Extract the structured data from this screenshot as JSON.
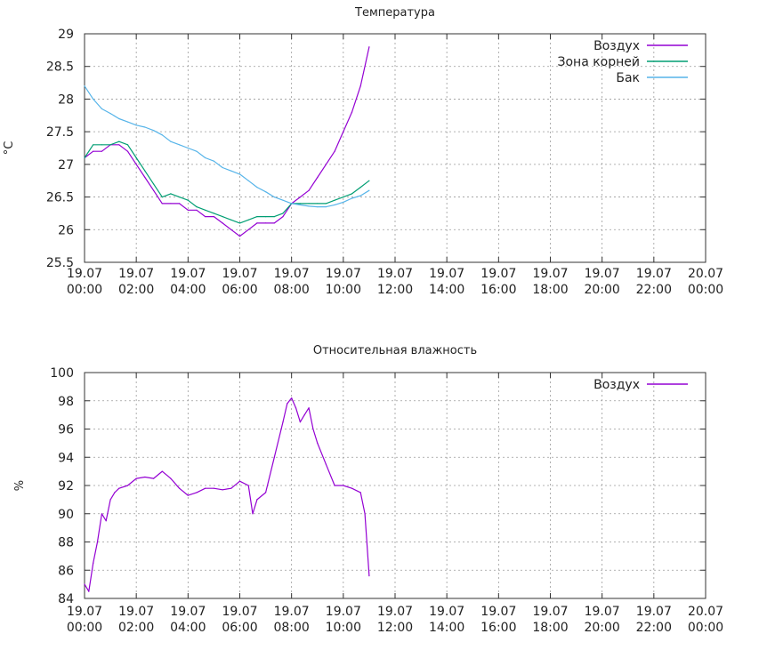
{
  "chart_data": [
    {
      "type": "line",
      "title": "Температура",
      "ylabel": "°C",
      "xlabel": "",
      "ylim": [
        25.5,
        29
      ],
      "xlim": [
        "19.07 00:00",
        "20.07 00:00"
      ],
      "yticks": [
        "25.5",
        "26",
        "26.5",
        "27",
        "27.5",
        "28",
        "28.5",
        "29"
      ],
      "xticks": [
        [
          "19.07",
          "00:00"
        ],
        [
          "19.07",
          "02:00"
        ],
        [
          "19.07",
          "04:00"
        ],
        [
          "19.07",
          "06:00"
        ],
        [
          "19.07",
          "08:00"
        ],
        [
          "19.07",
          "10:00"
        ],
        [
          "19.07",
          "12:00"
        ],
        [
          "19.07",
          "14:00"
        ],
        [
          "19.07",
          "16:00"
        ],
        [
          "19.07",
          "18:00"
        ],
        [
          "19.07",
          "20:00"
        ],
        [
          "19.07",
          "22:00"
        ],
        [
          "20.07",
          "00:00"
        ]
      ],
      "grid": true,
      "legend": "top-right",
      "series": [
        {
          "name": "Воздух",
          "color": "#9400d3",
          "x": [
            "19.07 00:00",
            "19.07 00:20",
            "19.07 00:40",
            "19.07 01:00",
            "19.07 01:20",
            "19.07 01:40",
            "19.07 02:00",
            "19.07 02:20",
            "19.07 02:40",
            "19.07 03:00",
            "19.07 03:20",
            "19.07 03:40",
            "19.07 04:00",
            "19.07 04:20",
            "19.07 04:40",
            "19.07 05:00",
            "19.07 05:20",
            "19.07 05:40",
            "19.07 06:00",
            "19.07 06:20",
            "19.07 06:40",
            "19.07 07:00",
            "19.07 07:20",
            "19.07 07:40",
            "19.07 08:00",
            "19.07 08:20",
            "19.07 08:40",
            "19.07 09:00",
            "19.07 09:20",
            "19.07 09:40",
            "19.07 10:00",
            "19.07 10:20",
            "19.07 10:40",
            "19.07 11:00"
          ],
          "y": [
            27.1,
            27.2,
            27.2,
            27.3,
            27.3,
            27.2,
            27.0,
            26.8,
            26.6,
            26.4,
            26.4,
            26.4,
            26.3,
            26.3,
            26.2,
            26.2,
            26.1,
            26.0,
            25.9,
            26.0,
            26.1,
            26.1,
            26.1,
            26.2,
            26.4,
            26.5,
            26.6,
            26.8,
            27.0,
            27.2,
            27.5,
            27.8,
            28.2,
            28.8
          ]
        },
        {
          "name": "Зона корней",
          "color": "#009e73",
          "x": [
            "19.07 00:00",
            "19.07 00:20",
            "19.07 00:40",
            "19.07 01:00",
            "19.07 01:20",
            "19.07 01:40",
            "19.07 02:00",
            "19.07 02:20",
            "19.07 02:40",
            "19.07 03:00",
            "19.07 03:20",
            "19.07 03:40",
            "19.07 04:00",
            "19.07 04:20",
            "19.07 04:40",
            "19.07 05:00",
            "19.07 05:20",
            "19.07 05:40",
            "19.07 06:00",
            "19.07 06:20",
            "19.07 06:40",
            "19.07 07:00",
            "19.07 07:20",
            "19.07 07:40",
            "19.07 08:00",
            "19.07 08:20",
            "19.07 08:40",
            "19.07 09:00",
            "19.07 09:20",
            "19.07 09:40",
            "19.07 10:00",
            "19.07 10:20",
            "19.07 10:40",
            "19.07 11:00"
          ],
          "y": [
            27.1,
            27.3,
            27.3,
            27.3,
            27.35,
            27.3,
            27.1,
            26.9,
            26.7,
            26.5,
            26.55,
            26.5,
            26.45,
            26.35,
            26.3,
            26.25,
            26.2,
            26.15,
            26.1,
            26.15,
            26.2,
            26.2,
            26.2,
            26.25,
            26.4,
            26.4,
            26.4,
            26.4,
            26.4,
            26.45,
            26.5,
            26.55,
            26.65,
            26.75
          ]
        },
        {
          "name": "Бак",
          "color": "#56b4e9",
          "x": [
            "19.07 00:00",
            "19.07 00:20",
            "19.07 00:40",
            "19.07 01:00",
            "19.07 01:20",
            "19.07 01:40",
            "19.07 02:00",
            "19.07 02:20",
            "19.07 02:40",
            "19.07 03:00",
            "19.07 03:20",
            "19.07 03:40",
            "19.07 04:00",
            "19.07 04:20",
            "19.07 04:40",
            "19.07 05:00",
            "19.07 05:20",
            "19.07 05:40",
            "19.07 06:00",
            "19.07 06:20",
            "19.07 06:40",
            "19.07 07:00",
            "19.07 07:20",
            "19.07 07:40",
            "19.07 08:00",
            "19.07 08:20",
            "19.07 08:40",
            "19.07 09:00",
            "19.07 09:20",
            "19.07 09:40",
            "19.07 10:00",
            "19.07 10:20",
            "19.07 10:40",
            "19.07 11:00"
          ],
          "y": [
            28.2,
            28.0,
            27.85,
            27.78,
            27.7,
            27.65,
            27.6,
            27.57,
            27.52,
            27.45,
            27.35,
            27.3,
            27.25,
            27.2,
            27.1,
            27.05,
            26.95,
            26.9,
            26.85,
            26.75,
            26.65,
            26.58,
            26.5,
            26.45,
            26.4,
            26.38,
            26.36,
            26.35,
            26.35,
            26.38,
            26.42,
            26.48,
            26.52,
            26.6
          ]
        }
      ]
    },
    {
      "type": "line",
      "title": "Относительная влажность",
      "ylabel": "%",
      "xlabel": "",
      "ylim": [
        84,
        100
      ],
      "xlim": [
        "19.07 00:00",
        "20.07 00:00"
      ],
      "yticks": [
        "84",
        "86",
        "88",
        "90",
        "92",
        "94",
        "96",
        "98",
        "100"
      ],
      "xticks": [
        [
          "19.07",
          "00:00"
        ],
        [
          "19.07",
          "02:00"
        ],
        [
          "19.07",
          "04:00"
        ],
        [
          "19.07",
          "06:00"
        ],
        [
          "19.07",
          "08:00"
        ],
        [
          "19.07",
          "10:00"
        ],
        [
          "19.07",
          "12:00"
        ],
        [
          "19.07",
          "14:00"
        ],
        [
          "19.07",
          "16:00"
        ],
        [
          "19.07",
          "18:00"
        ],
        [
          "19.07",
          "20:00"
        ],
        [
          "19.07",
          "22:00"
        ],
        [
          "20.07",
          "00:00"
        ]
      ],
      "grid": true,
      "legend": "top-right",
      "series": [
        {
          "name": "Воздух",
          "color": "#9400d3",
          "x": [
            "19.07 00:00",
            "19.07 00:10",
            "19.07 00:20",
            "19.07 00:30",
            "19.07 00:40",
            "19.07 00:50",
            "19.07 01:00",
            "19.07 01:10",
            "19.07 01:20",
            "19.07 01:40",
            "19.07 02:00",
            "19.07 02:20",
            "19.07 02:40",
            "19.07 03:00",
            "19.07 03:20",
            "19.07 03:40",
            "19.07 04:00",
            "19.07 04:20",
            "19.07 04:40",
            "19.07 05:00",
            "19.07 05:20",
            "19.07 05:40",
            "19.07 06:00",
            "19.07 06:20",
            "19.07 06:30",
            "19.07 06:40",
            "19.07 07:00",
            "19.07 07:20",
            "19.07 07:40",
            "19.07 07:50",
            "19.07 08:00",
            "19.07 08:10",
            "19.07 08:20",
            "19.07 08:30",
            "19.07 08:40",
            "19.07 08:50",
            "19.07 09:00",
            "19.07 09:20",
            "19.07 09:40",
            "19.07 10:00",
            "19.07 10:20",
            "19.07 10:40",
            "19.07 10:50",
            "19.07 11:00"
          ],
          "y": [
            85.0,
            84.5,
            86.5,
            88.0,
            90.0,
            89.5,
            91.0,
            91.5,
            91.8,
            92.0,
            92.5,
            92.6,
            92.5,
            93.0,
            92.5,
            91.8,
            91.3,
            91.5,
            91.8,
            91.8,
            91.7,
            91.8,
            92.3,
            92.0,
            90.0,
            91.0,
            91.5,
            94.0,
            96.5,
            97.8,
            98.2,
            97.5,
            96.5,
            97.0,
            97.5,
            96.0,
            95.0,
            93.5,
            92.0,
            92.0,
            91.8,
            91.5,
            90.0,
            85.6
          ]
        }
      ]
    }
  ]
}
